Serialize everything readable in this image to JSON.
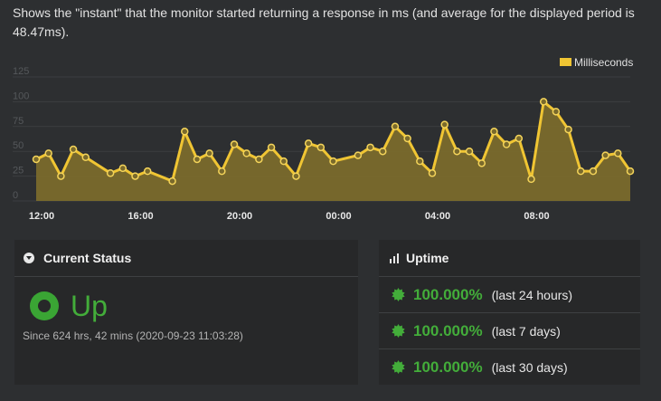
{
  "description": "Shows the \"instant\" that the monitor started returning a response in ms (and average for the displayed period is 48.47ms).",
  "chart_data": {
    "type": "area",
    "legend": "Milliseconds",
    "legend_position": "top-right",
    "y_ticks": [
      "0",
      "25",
      "50",
      "75",
      "100",
      "125"
    ],
    "ylim": [
      0,
      125
    ],
    "x_ticks": [
      "12:00",
      "16:00",
      "20:00",
      "00:00",
      "04:00",
      "08:00"
    ],
    "xlim": [
      0,
      24
    ],
    "grid": true,
    "color": "#f0c533",
    "x": [
      0,
      0.5,
      1,
      1.5,
      2,
      3,
      3.5,
      4,
      4.5,
      5.5,
      6,
      6.5,
      7,
      7.5,
      8,
      8.5,
      9,
      9.5,
      10,
      10.5,
      11,
      11.5,
      12,
      13,
      13.5,
      14,
      14.5,
      15,
      15.5,
      16,
      16.5,
      17,
      17.5,
      18,
      18.5,
      19,
      19.5,
      20,
      20.5,
      21,
      21.5,
      22,
      22.5,
      23,
      23.5,
      24
    ],
    "values": [
      42,
      48,
      25,
      52,
      44,
      28,
      33,
      25,
      30,
      20,
      70,
      42,
      48,
      30,
      57,
      48,
      42,
      54,
      40,
      25,
      58,
      54,
      40,
      46,
      54,
      50,
      75,
      63,
      40,
      28,
      77,
      50,
      50,
      38,
      70,
      57,
      63,
      22,
      100,
      90,
      72,
      30,
      30,
      46,
      48,
      30
    ]
  },
  "status": {
    "title": "Current Status",
    "state": "Up",
    "since": "Since 624 hrs, 42 mins (2020-09-23 11:03:28)"
  },
  "uptime": {
    "title": "Uptime",
    "rows": [
      {
        "percent": "100.000%",
        "period": "(last 24 hours)"
      },
      {
        "percent": "100.000%",
        "period": "(last 7 days)"
      },
      {
        "percent": "100.000%",
        "period": "(last 30 days)"
      }
    ]
  }
}
